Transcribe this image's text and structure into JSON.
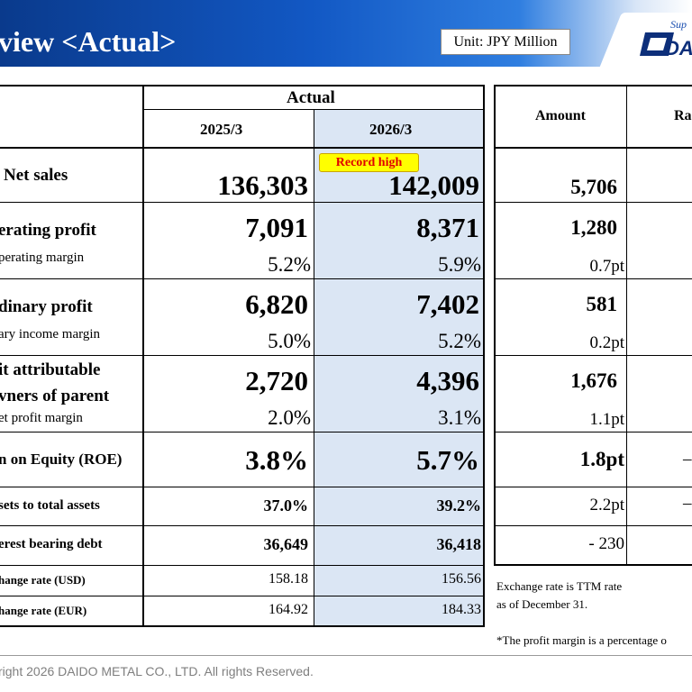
{
  "header": {
    "title": "view <Actual>",
    "unit": "Unit: JPY Million",
    "logo_tagline": "Sup",
    "logo_text": "DAI"
  },
  "table": {
    "group_header": "Actual",
    "col_prev": "2025/3",
    "col_curr": "2026/3",
    "col_amount": "Amount",
    "col_rate": "Ra",
    "record_badge": "Record high",
    "rows": [
      {
        "label": "Net sales",
        "prev": "136,303",
        "curr": "142,009",
        "amount": "5,706"
      },
      {
        "label": "erating profit",
        "sublabel": "perating margin",
        "prev": "7,091",
        "prev_pct": "5.2%",
        "curr": "8,371",
        "curr_pct": "5.9%",
        "amount": "1,280",
        "amount_pct": "0.7pt"
      },
      {
        "label": "dinary profit",
        "sublabel": "ary income margin",
        "prev": "6,820",
        "prev_pct": "5.0%",
        "curr": "7,402",
        "curr_pct": "5.2%",
        "amount": "581",
        "amount_pct": "0.2pt"
      },
      {
        "label": "it attributable",
        "label2": "vners of parent",
        "sublabel": "et profit margin",
        "prev": "2,720",
        "prev_pct": "2.0%",
        "curr": "4,396",
        "curr_pct": "3.1%",
        "amount": "1,676",
        "amount_pct": "1.1pt"
      },
      {
        "label": "n on Equity (ROE)",
        "prev": "3.8%",
        "curr": "5.7%",
        "amount": "1.8pt",
        "rate": "–"
      },
      {
        "label": "sets to total assets",
        "prev": "37.0%",
        "curr": "39.2%",
        "amount": "2.2pt",
        "rate": "–"
      },
      {
        "label": "erest bearing debt",
        "prev": "36,649",
        "curr": "36,418",
        "amount": "- 230"
      },
      {
        "label": "hange rate (USD)",
        "prev": "158.18",
        "curr": "156.56"
      },
      {
        "label": "hange rate (EUR)",
        "prev": "164.92",
        "curr": "184.33"
      }
    ]
  },
  "notes": {
    "exchange_line1": "Exchange rate is TTM rate",
    "exchange_line2": "as of December 31.",
    "margin_note": "*The profit margin is a percentage o"
  },
  "footer": {
    "copyright": "right 2026 DAIDO METAL CO., LTD. All rights Reserved."
  },
  "colors": {
    "header_blue": "#1258c4",
    "shade": "#dbe6f4",
    "record_text": "#e00000",
    "record_bg": "#ffff00"
  }
}
